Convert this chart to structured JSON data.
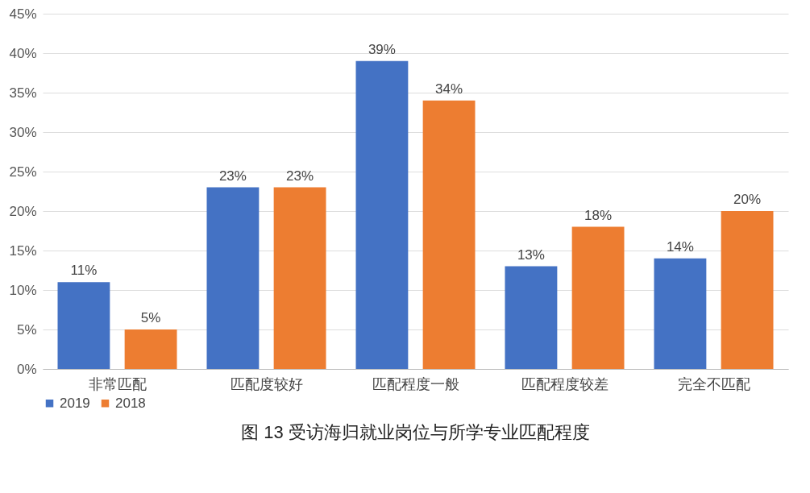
{
  "chart_data": {
    "type": "bar",
    "title": "图 13  受访海归就业岗位与所学专业匹配程度",
    "categories": [
      "非常匹配",
      "匹配度较好",
      "匹配程度一般",
      "匹配程度较差",
      "完全不匹配"
    ],
    "series": [
      {
        "name": "2019",
        "color": "#4472c4",
        "values": [
          11,
          23,
          39,
          13,
          14
        ],
        "value_labels": [
          "11%",
          "23%",
          "39%",
          "13%",
          "14%"
        ]
      },
      {
        "name": "2018",
        "color": "#ed7d31",
        "values": [
          5,
          23,
          34,
          18,
          20
        ],
        "value_labels": [
          "5%",
          "23%",
          "34%",
          "18%",
          "20%"
        ]
      }
    ],
    "ylim": [
      0,
      45
    ],
    "yticks": [
      {
        "value": 0,
        "label": "0%"
      },
      {
        "value": 5,
        "label": "5%"
      },
      {
        "value": 10,
        "label": "10%"
      },
      {
        "value": 15,
        "label": "15%"
      },
      {
        "value": 20,
        "label": "20%"
      },
      {
        "value": 25,
        "label": "25%"
      },
      {
        "value": 30,
        "label": "30%"
      },
      {
        "value": 35,
        "label": "35%"
      },
      {
        "value": 40,
        "label": "40%"
      },
      {
        "value": 45,
        "label": "45%"
      }
    ],
    "grid": true,
    "legend": "bottom"
  }
}
